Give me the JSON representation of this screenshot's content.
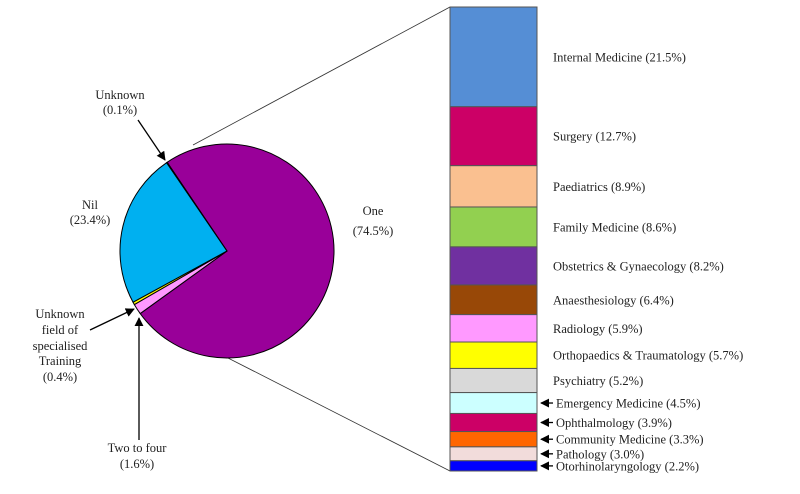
{
  "chart_data": {
    "type": "bar-of-pie",
    "pie": {
      "slices": [
        {
          "label": "One",
          "value": 74.5,
          "display": "(74.5%)",
          "color": "#990099"
        },
        {
          "label": "Two to four",
          "value": 1.6,
          "display": "(1.6%)",
          "color": "#FF99FF"
        },
        {
          "label": "Unknown field of specialised Training",
          "value": 0.4,
          "display": "(0.4%)",
          "color": "#FFFF00"
        },
        {
          "label": "Nil",
          "value": 23.4,
          "display": "(23.4%)",
          "color": "#00B0F0"
        },
        {
          "label": "Unknown",
          "value": 0.1,
          "display": "(0.1%)",
          "color": "#00A000"
        }
      ],
      "label_lines": {
        "unknown_field": [
          "Unknown",
          "field of",
          "specialised",
          "Training"
        ]
      }
    },
    "bar": {
      "expands_slice": "One",
      "segments": [
        {
          "label": "Internal Medicine (21.5%)",
          "value": 21.5,
          "color": "#558ED5"
        },
        {
          "label": "Surgery (12.7%)",
          "value": 12.7,
          "color": "#CC0066"
        },
        {
          "label": "Paediatrics (8.9%)",
          "value": 8.9,
          "color": "#FAC090"
        },
        {
          "label": "Family Medicine (8.6%)",
          "value": 8.6,
          "color": "#92D050"
        },
        {
          "label": "Obstetrics & Gynaecology (8.2%)",
          "value": 8.2,
          "color": "#7030A0"
        },
        {
          "label": "Anaesthesiology (6.4%)",
          "value": 6.4,
          "color": "#984807"
        },
        {
          "label": "Radiology (5.9%)",
          "value": 5.9,
          "color": "#FF99FF"
        },
        {
          "label": "Orthopaedics & Traumatology (5.7%)",
          "value": 5.7,
          "color": "#FFFF00"
        },
        {
          "label": "Psychiatry (5.2%)",
          "value": 5.2,
          "color": "#D9D9D9"
        },
        {
          "label": "Emergency Medicine (4.5%)",
          "value": 4.5,
          "color": "#CCFFFF",
          "arrow": true
        },
        {
          "label": "Ophthalmology (3.9%)",
          "value": 3.9,
          "color": "#CC0066",
          "arrow": true
        },
        {
          "label": "Community Medicine (3.3%)",
          "value": 3.3,
          "color": "#FF6600",
          "arrow": true
        },
        {
          "label": "Pathology (3.0%)",
          "value": 3.0,
          "color": "#F2DCDB",
          "arrow": true
        },
        {
          "label": "Otorhinolaryngology (2.2%)",
          "value": 2.2,
          "color": "#0000FF",
          "arrow": true
        }
      ]
    }
  }
}
